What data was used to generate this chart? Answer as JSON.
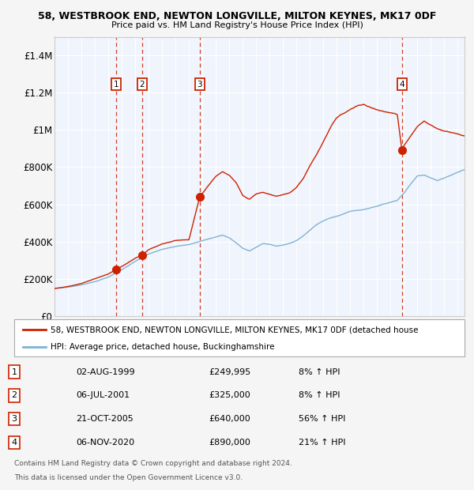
{
  "title1": "58, WESTBROOK END, NEWTON LONGVILLE, MILTON KEYNES, MK17 0DF",
  "title2": "Price paid vs. HM Land Registry's House Price Index (HPI)",
  "fig_bg": "#f5f5f5",
  "plot_bg": "#f0f4fc",
  "red_color": "#cc2200",
  "blue_color": "#7fb3d3",
  "transactions": [
    {
      "num": 1,
      "date_str": "02-AUG-1999",
      "year": 1999.58,
      "price": 249995,
      "pct": "8%",
      "dir": "↑"
    },
    {
      "num": 2,
      "date_str": "06-JUL-2001",
      "year": 2001.51,
      "price": 325000,
      "pct": "8%",
      "dir": "↑"
    },
    {
      "num": 3,
      "date_str": "21-OCT-2005",
      "year": 2005.8,
      "price": 640000,
      "pct": "56%",
      "dir": "↑"
    },
    {
      "num": 4,
      "date_str": "06-NOV-2020",
      "year": 2020.85,
      "price": 890000,
      "pct": "21%",
      "dir": "↑"
    }
  ],
  "legend_line1": "58, WESTBROOK END, NEWTON LONGVILLE, MILTON KEYNES, MK17 0DF (detached house",
  "legend_line2": "HPI: Average price, detached house, Buckinghamshire",
  "footnote1": "Contains HM Land Registry data © Crown copyright and database right 2024.",
  "footnote2": "This data is licensed under the Open Government Licence v3.0.",
  "ylim": [
    0,
    1500000
  ],
  "yticks": [
    0,
    200000,
    400000,
    600000,
    800000,
    1000000,
    1200000,
    1400000
  ],
  "xlim_start": 1995,
  "xlim_end": 2025.5
}
